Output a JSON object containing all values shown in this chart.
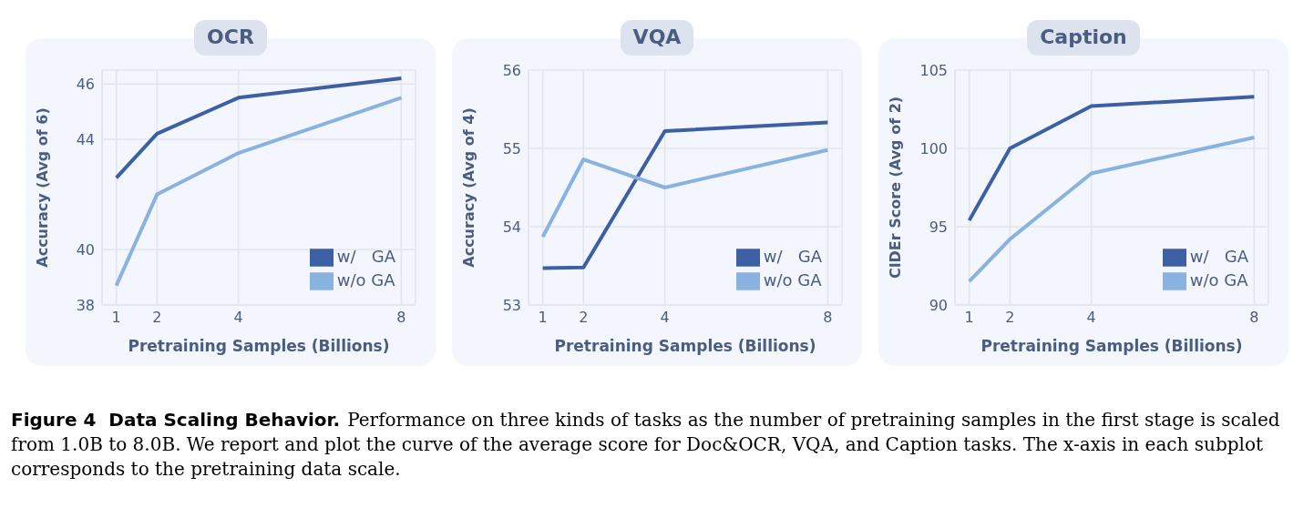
{
  "chart_data": [
    {
      "type": "line",
      "title": "OCR",
      "xlabel": "Pretraining Samples (Billions)",
      "ylabel": "Accuracy (Avg of 6)",
      "x": [
        1,
        2,
        4,
        8
      ],
      "xlim": [
        0.65,
        8.35
      ],
      "xticks": [
        1,
        2,
        4,
        8
      ],
      "ylim": [
        38,
        46.5
      ],
      "yticks": [
        38,
        40,
        44,
        46
      ],
      "grid": true,
      "legend": "bottom right",
      "series": [
        {
          "name": "w/   GA",
          "color": "#3d5fa3",
          "values": [
            42.6,
            44.2,
            45.5,
            46.2
          ]
        },
        {
          "name": "w/o GA",
          "color": "#8ab2e0",
          "values": [
            38.7,
            42.0,
            43.5,
            45.5
          ]
        }
      ],
      "annotations": [
        "Figure 4  Data Scaling Behavior.",
        "Performance on three kinds of tasks as the number of pretraining samples in the first stage is scaled from 1.0B to 8.0B. We report and plot the curve of the average score for Doc&OCR, VQA, and Caption tasks. The x-axis in each subplot corresponds to the pretraining data scale."
      ]
    },
    {
      "type": "line",
      "title": "VQA",
      "xlabel": "Pretraining Samples (Billions)",
      "ylabel": "Accuracy (Avg of 4)",
      "x": [
        1,
        2,
        4,
        8
      ],
      "xlim": [
        0.65,
        8.35
      ],
      "xticks": [
        1,
        2,
        4,
        8
      ],
      "ylim": [
        53,
        56
      ],
      "yticks": [
        53,
        54,
        55,
        56
      ],
      "grid": true,
      "legend": "bottom right",
      "series": [
        {
          "name": "w/   GA",
          "color": "#3d5fa3",
          "values": [
            53.47,
            53.48,
            55.22,
            55.33
          ]
        },
        {
          "name": "w/o GA",
          "color": "#8ab2e0",
          "values": [
            53.87,
            54.86,
            54.5,
            54.98
          ]
        }
      ]
    },
    {
      "type": "line",
      "title": "Caption",
      "xlabel": "Pretraining Samples (Billions)",
      "ylabel": "CIDEr Score (Avg of 2)",
      "x": [
        1,
        2,
        4,
        8
      ],
      "xlim": [
        0.65,
        8.35
      ],
      "xticks": [
        1,
        2,
        4,
        8
      ],
      "ylim": [
        90,
        105
      ],
      "yticks": [
        90,
        95,
        100,
        105
      ],
      "grid": true,
      "legend": "bottom right",
      "series": [
        {
          "name": "w/   GA",
          "color": "#3d5fa3",
          "values": [
            95.4,
            100.0,
            102.7,
            103.3
          ]
        },
        {
          "name": "w/o GA",
          "color": "#8ab2e0",
          "values": [
            91.5,
            94.2,
            98.4,
            100.7
          ]
        }
      ]
    }
  ]
}
